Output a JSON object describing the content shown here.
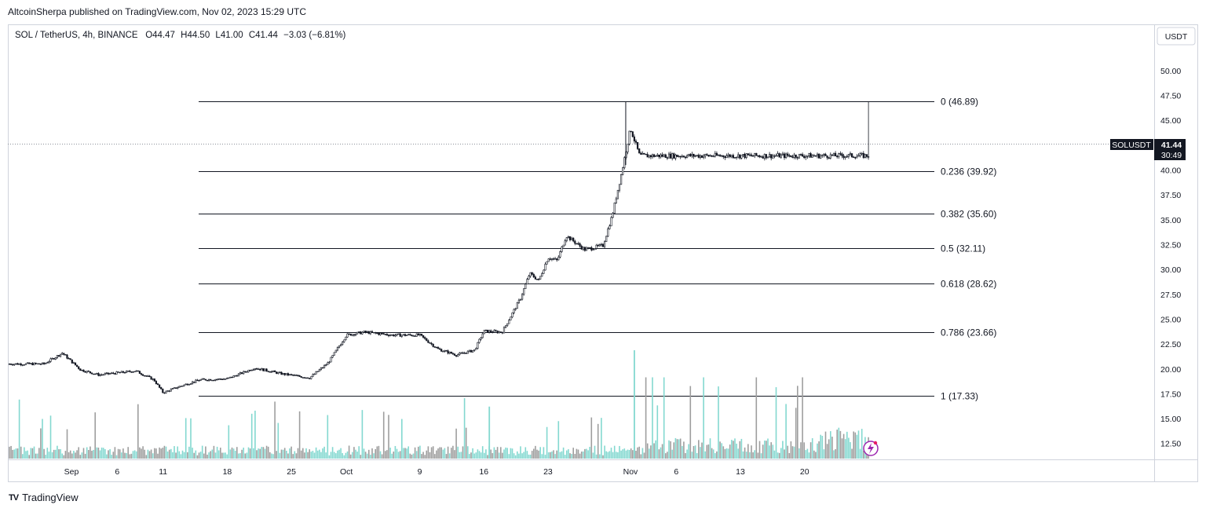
{
  "header": {
    "published_text": "AltcoinSherpa published on TradingView.com, Nov 02, 2023 15:29 UTC"
  },
  "legend": {
    "symbol": "SOL / TetherUS, 4h, BINANCE",
    "open_label": "O",
    "open": "44.47",
    "high_label": "H",
    "high": "44.50",
    "low_label": "L",
    "low": "41.00",
    "close_label": "C",
    "close": "41.44",
    "change": "−3.03 (−6.81%)"
  },
  "price_axis": {
    "currency_button": "USDT",
    "symbol_tag": "SOLUSDT",
    "last_price": "41.44",
    "countdown": "30:49"
  },
  "footer": {
    "brand": "TradingView",
    "logo_text": "TV"
  },
  "colors": {
    "up_volume": "#83d8d0",
    "down_volume": "#9e9e9e",
    "candle": "#131722",
    "fib_line": "#131722",
    "grid_border": "#cfd3dc",
    "alert_icon": "#9c27b0"
  },
  "chart_data": {
    "type": "candlestick",
    "symbol": "SOL / TetherUS",
    "interval": "4h",
    "exchange": "BINANCE",
    "y_axis_ticks": [
      "50.00",
      "47.50",
      "45.00",
      "42.50",
      "40.00",
      "37.50",
      "35.00",
      "32.50",
      "30.00",
      "27.50",
      "25.00",
      "22.50",
      "20.00",
      "17.50",
      "15.00",
      "12.50"
    ],
    "x_axis_ticks": [
      "Sep",
      "6",
      "11",
      "18",
      "25",
      "Oct",
      "9",
      "16",
      "23",
      "Nov",
      "6",
      "13",
      "20"
    ],
    "ylim": [
      10.9,
      52.6
    ],
    "price_path": [
      {
        "date": "2023-08-29",
        "close": 20.5
      },
      {
        "date": "2023-08-31",
        "close": 21.6
      },
      {
        "date": "2023-09-02",
        "close": 19.9
      },
      {
        "date": "2023-09-04",
        "close": 19.4
      },
      {
        "date": "2023-09-06",
        "close": 19.6
      },
      {
        "date": "2023-09-08",
        "close": 19.8
      },
      {
        "date": "2023-09-10",
        "close": 18.9
      },
      {
        "date": "2023-09-11",
        "close": 17.6
      },
      {
        "date": "2023-09-13",
        "close": 18.3
      },
      {
        "date": "2023-09-15",
        "close": 18.9
      },
      {
        "date": "2023-09-18",
        "close": 19.0
      },
      {
        "date": "2023-09-21",
        "close": 20.1
      },
      {
        "date": "2023-09-24",
        "close": 19.5
      },
      {
        "date": "2023-09-27",
        "close": 19.1
      },
      {
        "date": "2023-09-29",
        "close": 20.6
      },
      {
        "date": "2023-10-01",
        "close": 23.4
      },
      {
        "date": "2023-10-03",
        "close": 23.7
      },
      {
        "date": "2023-10-06",
        "close": 23.4
      },
      {
        "date": "2023-10-09",
        "close": 23.4
      },
      {
        "date": "2023-10-11",
        "close": 22.0
      },
      {
        "date": "2023-10-13",
        "close": 21.4
      },
      {
        "date": "2023-10-15",
        "close": 21.9
      },
      {
        "date": "2023-10-16",
        "close": 23.8
      },
      {
        "date": "2023-10-18",
        "close": 23.7
      },
      {
        "date": "2023-10-19",
        "close": 25.4
      },
      {
        "date": "2023-10-20",
        "close": 27.1
      },
      {
        "date": "2023-10-21",
        "close": 29.6
      },
      {
        "date": "2023-10-22",
        "close": 28.9
      },
      {
        "date": "2023-10-23",
        "close": 31.2
      },
      {
        "date": "2023-10-24",
        "close": 30.9
      },
      {
        "date": "2023-10-25",
        "close": 33.4
      },
      {
        "date": "2023-10-27",
        "close": 32.0
      },
      {
        "date": "2023-10-29",
        "close": 32.4
      },
      {
        "date": "2023-10-30",
        "close": 35.4
      },
      {
        "date": "2023-10-31",
        "close": 39.6
      },
      {
        "date": "2023-11-01",
        "close": 44.2
      },
      {
        "date": "2023-11-02",
        "close": 41.44
      }
    ],
    "peak_high": 46.89,
    "fib_levels": [
      {
        "label": "0 (46.89)",
        "ratio": 0,
        "price": 46.89
      },
      {
        "label": "0.236 (39.92)",
        "ratio": 0.236,
        "price": 39.92
      },
      {
        "label": "0.382 (35.60)",
        "ratio": 0.382,
        "price": 35.6
      },
      {
        "label": "0.5 (32.11)",
        "ratio": 0.5,
        "price": 32.11
      },
      {
        "label": "0.618 (28.62)",
        "ratio": 0.618,
        "price": 28.62
      },
      {
        "label": "0.786 (23.66)",
        "ratio": 0.786,
        "price": 23.66
      },
      {
        "label": "1 (17.33)",
        "ratio": 1,
        "price": 17.33
      }
    ],
    "last_price": 41.44,
    "volume_notable_spikes": [
      {
        "date": "2023-10-16",
        "relative": 0.48
      },
      {
        "date": "2023-11-01",
        "relative": 1.0
      }
    ]
  }
}
